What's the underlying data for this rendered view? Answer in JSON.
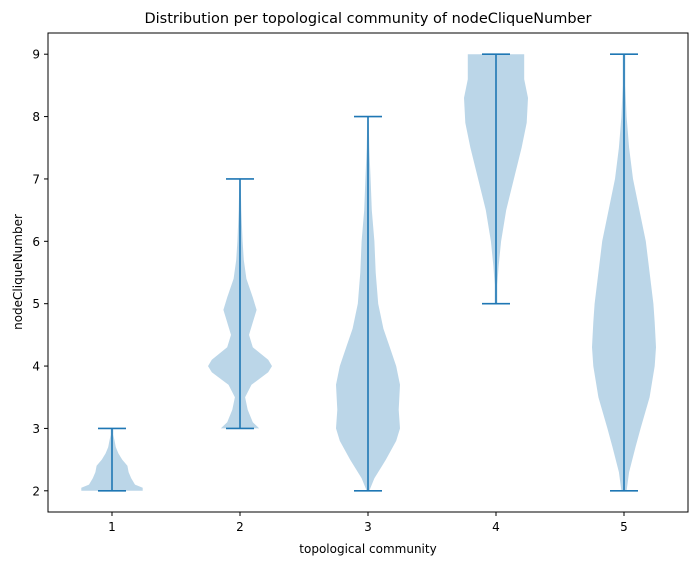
{
  "chart_data": {
    "type": "violin",
    "title": "Distribution per topological community of nodeCliqueNumber",
    "xlabel": "topological community",
    "ylabel": "nodeCliqueNumber",
    "categories": [
      "1",
      "2",
      "3",
      "4",
      "5"
    ],
    "x_ticks": [
      "1",
      "2",
      "3",
      "4",
      "5"
    ],
    "y_ticks": [
      "2",
      "3",
      "4",
      "5",
      "6",
      "7",
      "8",
      "9"
    ],
    "ylim": [
      1.66,
      9.34
    ],
    "grid": false,
    "colors": {
      "body": "#1f77b4",
      "body_alpha": 0.3,
      "line": "#1f77b4"
    },
    "violins": [
      {
        "category": "1",
        "min": 2,
        "max": 3,
        "profile": [
          [
            2.0,
            0.24
          ],
          [
            2.05,
            0.24
          ],
          [
            2.1,
            0.18
          ],
          [
            2.2,
            0.15
          ],
          [
            2.3,
            0.13
          ],
          [
            2.4,
            0.12
          ],
          [
            2.5,
            0.08
          ],
          [
            2.6,
            0.05
          ],
          [
            2.7,
            0.03
          ],
          [
            2.8,
            0.02
          ],
          [
            2.9,
            0.01
          ],
          [
            3.0,
            0.01
          ]
        ]
      },
      {
        "category": "2",
        "min": 3,
        "max": 7,
        "profile": [
          [
            3.0,
            0.15
          ],
          [
            3.1,
            0.1
          ],
          [
            3.3,
            0.06
          ],
          [
            3.5,
            0.04
          ],
          [
            3.7,
            0.09
          ],
          [
            3.9,
            0.22
          ],
          [
            4.0,
            0.25
          ],
          [
            4.1,
            0.22
          ],
          [
            4.3,
            0.1
          ],
          [
            4.5,
            0.07
          ],
          [
            4.7,
            0.1
          ],
          [
            4.9,
            0.13
          ],
          [
            5.1,
            0.1
          ],
          [
            5.4,
            0.05
          ],
          [
            5.7,
            0.03
          ],
          [
            6.0,
            0.02
          ],
          [
            6.5,
            0.01
          ],
          [
            7.0,
            0.005
          ]
        ]
      },
      {
        "category": "3",
        "min": 2,
        "max": 8,
        "profile": [
          [
            2.0,
            0.01
          ],
          [
            2.2,
            0.05
          ],
          [
            2.5,
            0.14
          ],
          [
            2.8,
            0.22
          ],
          [
            3.0,
            0.25
          ],
          [
            3.3,
            0.24
          ],
          [
            3.7,
            0.25
          ],
          [
            4.0,
            0.22
          ],
          [
            4.3,
            0.17
          ],
          [
            4.6,
            0.12
          ],
          [
            5.0,
            0.08
          ],
          [
            5.5,
            0.06
          ],
          [
            6.0,
            0.05
          ],
          [
            6.5,
            0.03
          ],
          [
            7.0,
            0.02
          ],
          [
            7.5,
            0.01
          ],
          [
            8.0,
            0.005
          ]
        ]
      },
      {
        "category": "4",
        "min": 5,
        "max": 9,
        "profile": [
          [
            5.0,
            0.01
          ],
          [
            5.3,
            0.01
          ],
          [
            5.6,
            0.02
          ],
          [
            6.0,
            0.04
          ],
          [
            6.5,
            0.08
          ],
          [
            7.0,
            0.14
          ],
          [
            7.5,
            0.2
          ],
          [
            7.9,
            0.24
          ],
          [
            8.3,
            0.25
          ],
          [
            8.6,
            0.22
          ],
          [
            8.8,
            0.22
          ],
          [
            9.0,
            0.22
          ]
        ]
      },
      {
        "category": "5",
        "min": 2,
        "max": 9,
        "profile": [
          [
            2.0,
            0.02
          ],
          [
            2.3,
            0.04
          ],
          [
            2.7,
            0.09
          ],
          [
            3.0,
            0.13
          ],
          [
            3.5,
            0.2
          ],
          [
            4.0,
            0.24
          ],
          [
            4.3,
            0.25
          ],
          [
            4.7,
            0.24
          ],
          [
            5.0,
            0.23
          ],
          [
            5.5,
            0.2
          ],
          [
            6.0,
            0.17
          ],
          [
            6.5,
            0.12
          ],
          [
            7.0,
            0.07
          ],
          [
            7.5,
            0.04
          ],
          [
            8.0,
            0.02
          ],
          [
            8.5,
            0.01
          ],
          [
            9.0,
            0.01
          ]
        ]
      }
    ]
  }
}
